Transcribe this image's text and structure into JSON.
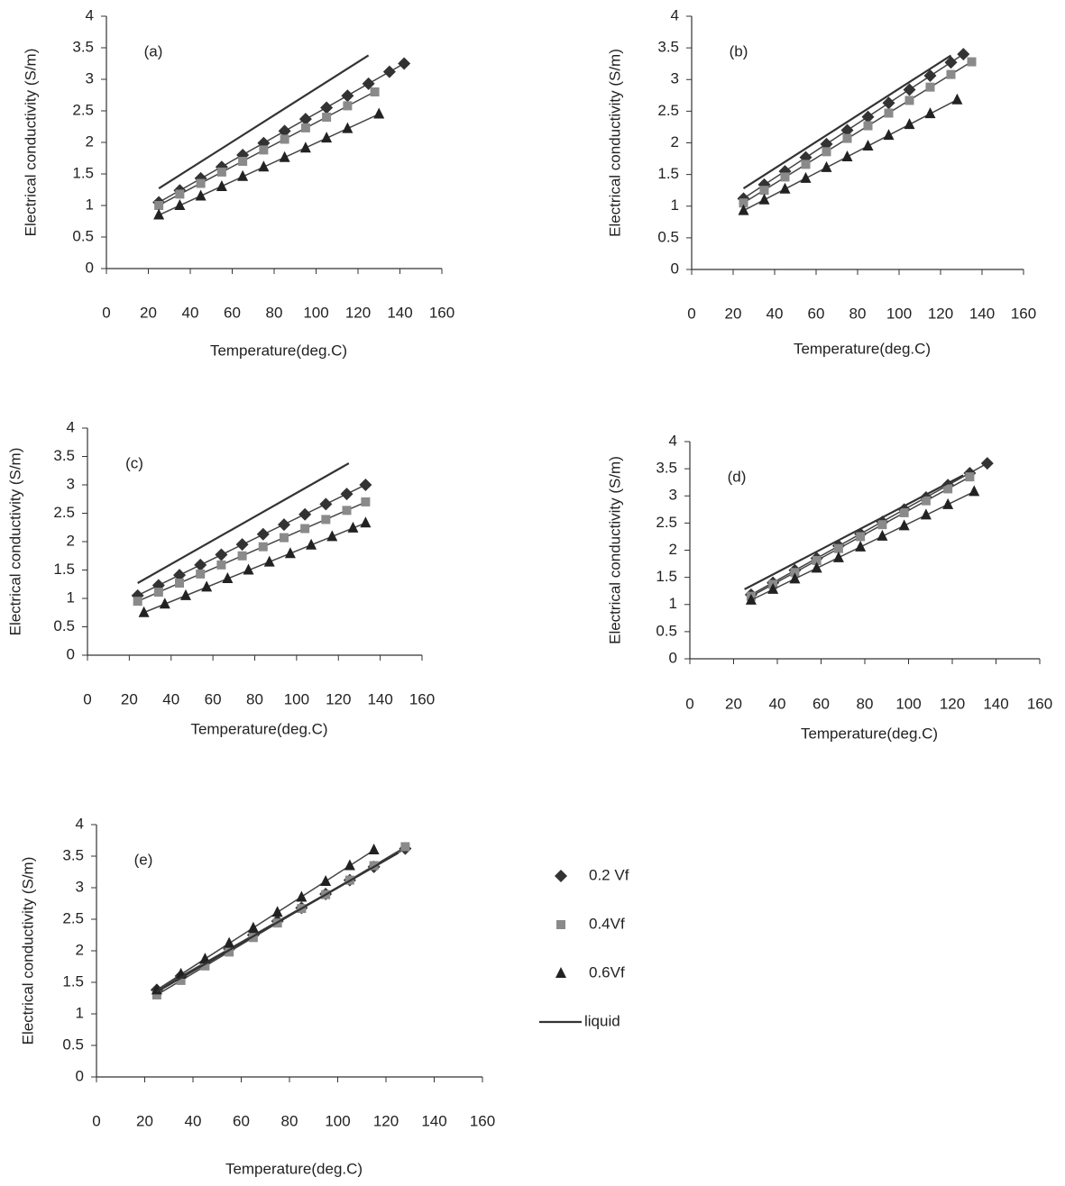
{
  "chart_data": [
    {
      "type": "scatter",
      "label": "(a)",
      "xlabel": "Temperature(deg.C)",
      "ylabel": "Electrical conductivity (S/m)",
      "xlim": [
        0,
        160
      ],
      "xticks": [
        0,
        20,
        40,
        60,
        80,
        100,
        120,
        140,
        160
      ],
      "ylim": [
        0,
        4
      ],
      "yticks": [
        0,
        0.5,
        1,
        1.5,
        2,
        2.5,
        3,
        3.5,
        4
      ],
      "trendline": true,
      "series": [
        {
          "marker": "diamond",
          "color": "#333333",
          "x": [
            25,
            35,
            45,
            55,
            65,
            75,
            85,
            95,
            105,
            115,
            125,
            135,
            142
          ],
          "values": [
            1.05,
            1.24,
            1.43,
            1.61,
            1.8,
            1.99,
            2.18,
            2.37,
            2.55,
            2.74,
            2.93,
            3.12,
            3.25
          ]
        },
        {
          "marker": "square",
          "color": "#8a8a8a",
          "x": [
            25,
            35,
            45,
            55,
            65,
            75,
            85,
            95,
            105,
            115,
            128
          ],
          "values": [
            1.0,
            1.18,
            1.35,
            1.53,
            1.7,
            1.88,
            2.05,
            2.23,
            2.4,
            2.58,
            2.8
          ]
        },
        {
          "marker": "triangle",
          "color": "#222222",
          "x": [
            25,
            35,
            45,
            55,
            65,
            75,
            85,
            95,
            105,
            115,
            130
          ],
          "values": [
            0.85,
            1.0,
            1.15,
            1.3,
            1.46,
            1.61,
            1.76,
            1.91,
            2.07,
            2.22,
            2.45
          ]
        },
        {
          "marker": "line",
          "color": "#333333",
          "x": [
            25,
            125
          ],
          "values": [
            1.27,
            3.38
          ]
        }
      ]
    },
    {
      "type": "scatter",
      "label": "(b)",
      "xlabel": "Temperature(deg.C)",
      "ylabel": "Electrical conductivity (S/m)",
      "xlim": [
        0,
        160
      ],
      "xticks": [
        0,
        20,
        40,
        60,
        80,
        100,
        120,
        140,
        160
      ],
      "ylim": [
        0,
        4
      ],
      "yticks": [
        0,
        0.5,
        1,
        1.5,
        2,
        2.5,
        3,
        3.5,
        4
      ],
      "trendline": true,
      "series": [
        {
          "marker": "diamond",
          "color": "#333333",
          "x": [
            25,
            35,
            45,
            55,
            65,
            75,
            85,
            95,
            105,
            115,
            125,
            131
          ],
          "values": [
            1.12,
            1.34,
            1.55,
            1.77,
            1.98,
            2.2,
            2.41,
            2.63,
            2.84,
            3.06,
            3.27,
            3.4
          ]
        },
        {
          "marker": "square",
          "color": "#8a8a8a",
          "x": [
            25,
            35,
            45,
            55,
            65,
            75,
            85,
            95,
            105,
            115,
            125,
            135
          ],
          "values": [
            1.05,
            1.25,
            1.46,
            1.66,
            1.86,
            2.07,
            2.27,
            2.47,
            2.67,
            2.88,
            3.08,
            3.28
          ]
        },
        {
          "marker": "triangle",
          "color": "#222222",
          "x": [
            25,
            35,
            45,
            55,
            65,
            75,
            85,
            95,
            105,
            115,
            128
          ],
          "values": [
            0.93,
            1.1,
            1.27,
            1.44,
            1.61,
            1.78,
            1.95,
            2.12,
            2.29,
            2.46,
            2.68
          ]
        },
        {
          "marker": "line",
          "color": "#333333",
          "x": [
            25,
            125
          ],
          "values": [
            1.28,
            3.38
          ]
        }
      ]
    },
    {
      "type": "scatter",
      "label": "(c)",
      "xlabel": "Temperature(deg.C)",
      "ylabel": "Electrical conductivity (S/m)",
      "xlim": [
        0,
        160
      ],
      "xticks": [
        0,
        20,
        40,
        60,
        80,
        100,
        120,
        140,
        160
      ],
      "ylim": [
        0,
        4
      ],
      "yticks": [
        0,
        0.5,
        1,
        1.5,
        2,
        2.5,
        3,
        3.5,
        4
      ],
      "trendline": true,
      "series": [
        {
          "marker": "diamond",
          "color": "#333333",
          "x": [
            24,
            34,
            44,
            54,
            64,
            74,
            84,
            94,
            104,
            114,
            124,
            133
          ],
          "values": [
            1.05,
            1.23,
            1.41,
            1.59,
            1.77,
            1.95,
            2.13,
            2.3,
            2.48,
            2.66,
            2.84,
            3.0
          ]
        },
        {
          "marker": "square",
          "color": "#8a8a8a",
          "x": [
            24,
            34,
            44,
            54,
            64,
            74,
            84,
            94,
            104,
            114,
            124,
            133
          ],
          "values": [
            0.95,
            1.11,
            1.27,
            1.43,
            1.59,
            1.75,
            1.91,
            2.07,
            2.23,
            2.39,
            2.55,
            2.7
          ]
        },
        {
          "marker": "triangle",
          "color": "#222222",
          "x": [
            27,
            37,
            47,
            57,
            67,
            77,
            87,
            97,
            107,
            117,
            127,
            133
          ],
          "values": [
            0.75,
            0.9,
            1.05,
            1.2,
            1.35,
            1.5,
            1.64,
            1.79,
            1.94,
            2.09,
            2.24,
            2.33
          ]
        },
        {
          "marker": "line",
          "color": "#333333",
          "x": [
            24,
            125
          ],
          "values": [
            1.27,
            3.38
          ]
        }
      ]
    },
    {
      "type": "scatter",
      "label": "(d)",
      "xlabel": "Temperature(deg.C)",
      "ylabel": "Electrical conductivity (S/m)",
      "xlim": [
        0,
        160
      ],
      "xticks": [
        0,
        20,
        40,
        60,
        80,
        100,
        120,
        140,
        160
      ],
      "ylim": [
        0,
        4
      ],
      "yticks": [
        0,
        0.5,
        1,
        1.5,
        2,
        2.5,
        3,
        3.5,
        4
      ],
      "trendline": true,
      "series": [
        {
          "marker": "diamond",
          "color": "#333333",
          "x": [
            28,
            38,
            48,
            58,
            68,
            78,
            88,
            98,
            108,
            118,
            128,
            136
          ],
          "values": [
            1.18,
            1.4,
            1.63,
            1.85,
            2.08,
            2.3,
            2.52,
            2.75,
            2.97,
            3.2,
            3.42,
            3.6
          ]
        },
        {
          "marker": "square",
          "color": "#8a8a8a",
          "x": [
            28,
            38,
            48,
            58,
            68,
            78,
            88,
            98,
            108,
            118,
            128
          ],
          "values": [
            1.15,
            1.37,
            1.59,
            1.81,
            2.03,
            2.25,
            2.47,
            2.69,
            2.91,
            3.13,
            3.35
          ]
        },
        {
          "marker": "triangle",
          "color": "#222222",
          "x": [
            28,
            38,
            48,
            58,
            68,
            78,
            88,
            98,
            108,
            118,
            130
          ],
          "values": [
            1.08,
            1.28,
            1.47,
            1.67,
            1.86,
            2.06,
            2.26,
            2.45,
            2.65,
            2.84,
            3.08
          ]
        },
        {
          "marker": "line",
          "color": "#333333",
          "x": [
            25,
            125
          ],
          "values": [
            1.28,
            3.38
          ]
        }
      ]
    },
    {
      "type": "scatter",
      "label": "(e)",
      "xlabel": "Temperature(deg.C)",
      "ylabel": "Electrical conductivity (S/m)",
      "xlim": [
        0,
        160
      ],
      "xticks": [
        0,
        20,
        40,
        60,
        80,
        100,
        120,
        140,
        160
      ],
      "ylim": [
        0,
        4
      ],
      "yticks": [
        0,
        0.5,
        1,
        1.5,
        2,
        2.5,
        3,
        3.5,
        4
      ],
      "trendline": true,
      "legend": "right",
      "series": [
        {
          "name": "0.2 Vf",
          "marker": "diamond",
          "color": "#333333",
          "x": [
            25,
            35,
            45,
            55,
            65,
            75,
            85,
            95,
            105,
            115,
            128
          ],
          "values": [
            1.38,
            1.6,
            1.81,
            2.03,
            2.25,
            2.47,
            2.68,
            2.9,
            3.12,
            3.33,
            3.62
          ]
        },
        {
          "name": "0.4Vf",
          "marker": "square",
          "color": "#8a8a8a",
          "x": [
            25,
            35,
            45,
            55,
            65,
            75,
            85,
            95,
            105,
            115,
            128
          ],
          "values": [
            1.3,
            1.53,
            1.76,
            1.98,
            2.21,
            2.44,
            2.67,
            2.89,
            3.12,
            3.35,
            3.65
          ]
        },
        {
          "name": "0.6Vf",
          "marker": "triangle",
          "color": "#222222",
          "x": [
            25,
            35,
            45,
            55,
            65,
            75,
            85,
            95,
            105,
            115
          ],
          "values": [
            1.38,
            1.63,
            1.87,
            2.12,
            2.36,
            2.61,
            2.85,
            3.1,
            3.35,
            3.6
          ]
        },
        {
          "name": "liquid",
          "marker": "line",
          "color": "#333333",
          "x": [
            25,
            125
          ],
          "values": [
            1.35,
            3.55
          ]
        }
      ]
    }
  ]
}
